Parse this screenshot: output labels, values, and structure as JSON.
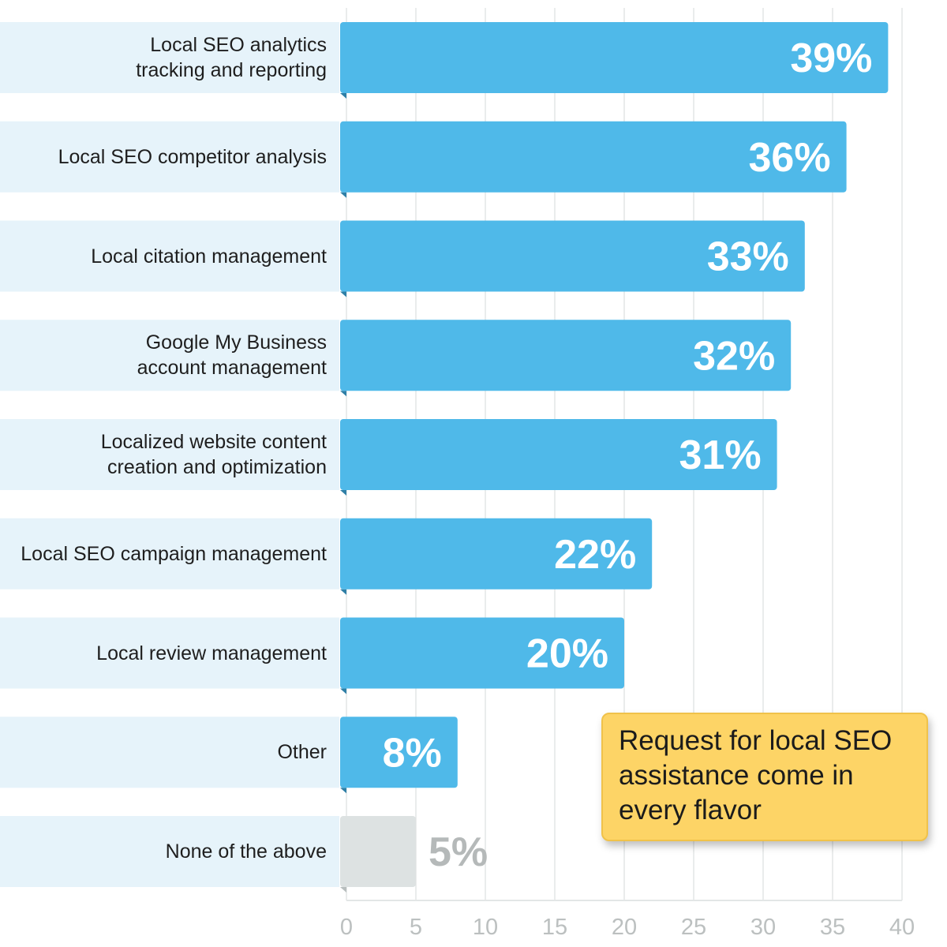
{
  "chart_data": {
    "type": "bar",
    "orientation": "horizontal",
    "categories": [
      "Local SEO analytics\ntracking and reporting",
      "Local SEO competitor analysis",
      "Local citation management",
      "Google My Business\naccount management",
      "Localized website content\ncreation and optimization",
      "Local SEO campaign management",
      "Local review management",
      "Other",
      "None of the above"
    ],
    "values": [
      39,
      36,
      33,
      32,
      31,
      22,
      20,
      8,
      5
    ],
    "value_labels": [
      "39%",
      "36%",
      "33%",
      "32%",
      "31%",
      "22%",
      "20%",
      "8%",
      "5%"
    ],
    "colors": [
      "#4fb9e9",
      "#4fb9e9",
      "#4fb9e9",
      "#4fb9e9",
      "#4fb9e9",
      "#4fb9e9",
      "#4fb9e9",
      "#4fb9e9",
      "#dde2e2"
    ],
    "xlim": [
      0,
      40
    ],
    "xticks": [
      0,
      5,
      10,
      15,
      20,
      25,
      30,
      35,
      40
    ],
    "grid": true,
    "annotation": "Request for local SEO assistance come in every flavor"
  }
}
